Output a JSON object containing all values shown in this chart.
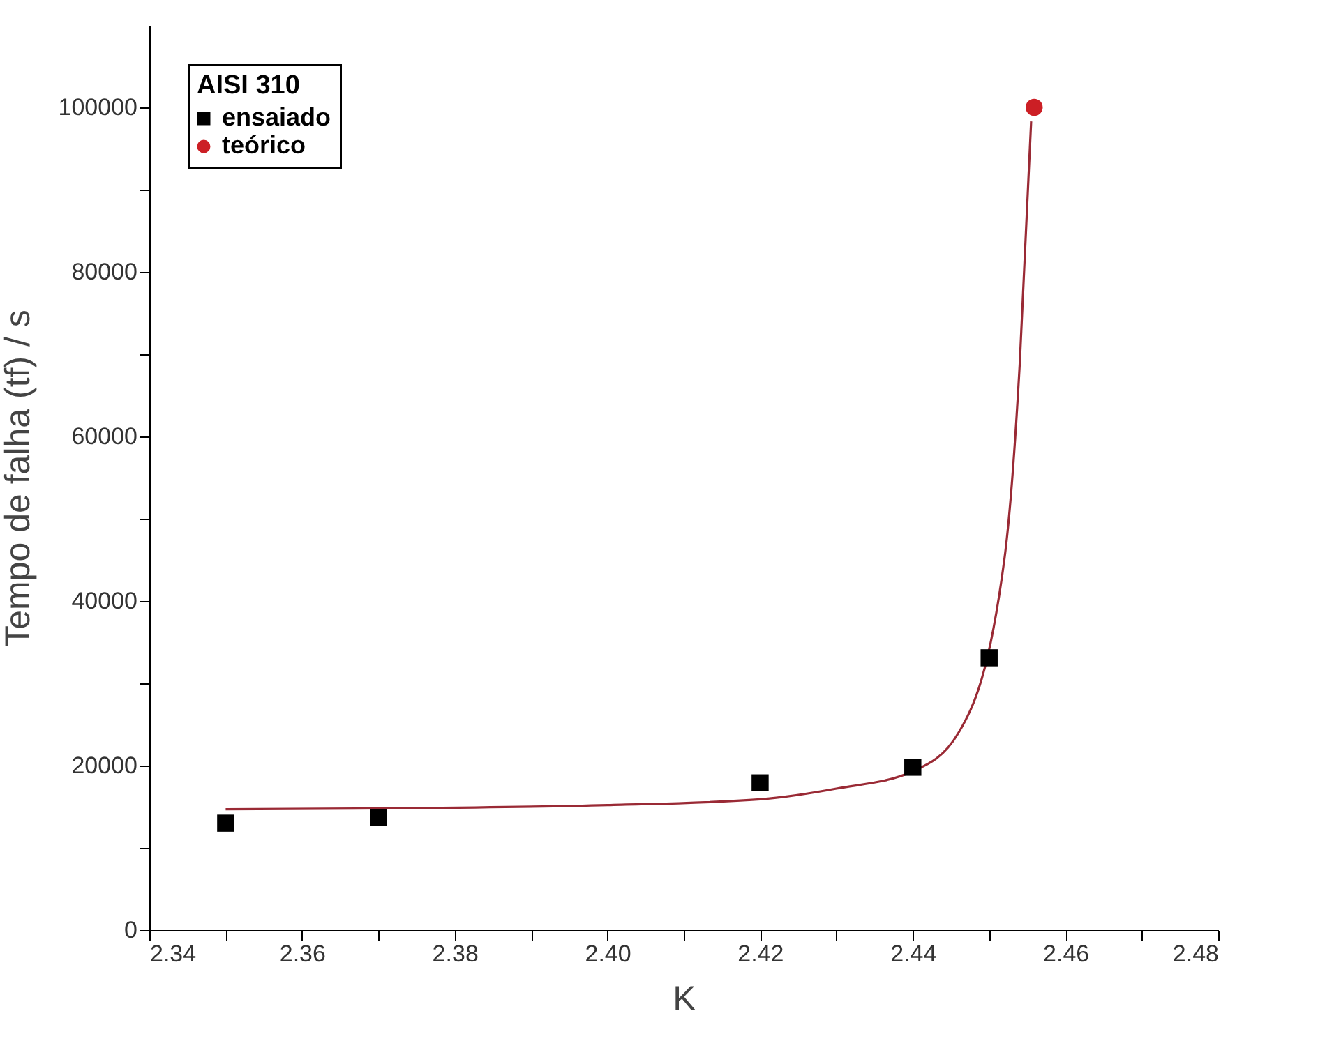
{
  "chart_data": {
    "type": "scatter",
    "xlabel": "K",
    "ylabel": "Tempo de falha (tf) / s",
    "legend_title": "AISI 310",
    "legend": "top left",
    "grid": false,
    "xlim": [
      2.34,
      2.48
    ],
    "xticks": [
      2.34,
      {
        "value": 2.35,
        "label": null
      },
      {
        "value": 2.36,
        "label": "2.36"
      },
      {
        "value": 2.37,
        "label": null
      },
      {
        "value": 2.38,
        "label": "2.38"
      },
      {
        "value": 2.39,
        "label": null
      },
      {
        "value": 2.4,
        "label": "2.40"
      },
      {
        "value": 2.41,
        "label": null
      },
      {
        "value": 2.42,
        "label": "2.42"
      },
      {
        "value": 2.43,
        "label": null
      },
      {
        "value": 2.44,
        "label": "2.44"
      },
      {
        "value": 2.45,
        "label": null
      },
      {
        "value": 2.46,
        "label": "2.46"
      },
      {
        "value": 2.47,
        "label": null
      },
      {
        "value": 2.48,
        "label": "2.48"
      }
    ],
    "ylim": [
      0,
      110000
    ],
    "yticks": [
      0,
      {
        "value": 10000,
        "label": null
      },
      20000,
      {
        "value": 30000,
        "label": null
      },
      40000,
      {
        "value": 50000,
        "label": null
      },
      60000,
      {
        "value": 70000,
        "label": null
      },
      80000,
      {
        "value": 90000,
        "label": null
      },
      100000
    ],
    "series": [
      {
        "type": "line",
        "color": "#9a2a35",
        "marker": "none",
        "x": [
          2.35,
          2.37,
          2.4,
          2.42,
          2.43,
          2.44,
          2.446,
          2.452,
          2.454,
          2.4555
        ],
        "values": [
          14700,
          14800,
          15200,
          15900,
          17200,
          19300,
          24000,
          45100,
          68700,
          98300
        ]
      },
      {
        "name": "ensaiado",
        "color": "#000000",
        "marker": "square",
        "x": [
          2.35,
          2.37,
          2.42,
          2.44,
          2.45
        ],
        "values": [
          13000,
          13700,
          17900,
          19800,
          33100
        ]
      },
      {
        "name": "teórico",
        "color": "#cc1f25",
        "marker": "circle",
        "x": [
          2.4559
        ],
        "values": [
          100000
        ]
      }
    ]
  }
}
